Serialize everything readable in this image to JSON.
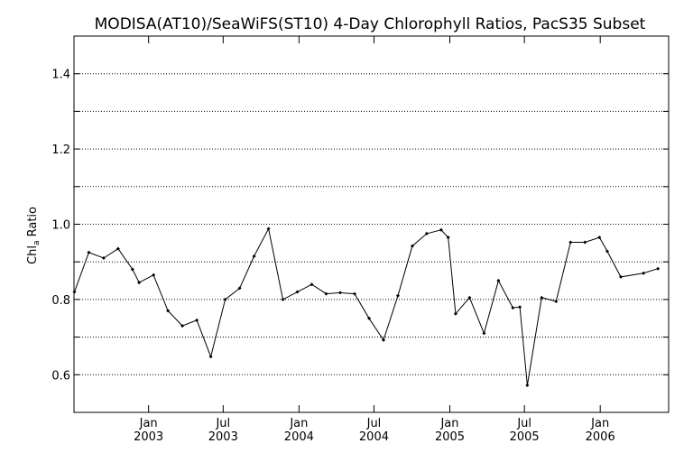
{
  "chart_data": {
    "type": "line",
    "title": "MODISA(AT10)/SeaWiFS(ST10) 4-Day Chlorophyll Ratios, PacS35 Subset",
    "ylabel": "Chl_a Ratio",
    "ylabel_main": "Chl",
    "ylabel_sub": "a",
    "ylabel_rest": " Ratio",
    "xlabel": "",
    "xlim": [
      "2002-07-04",
      "2006-06-16"
    ],
    "ylim": [
      0.5,
      1.5
    ],
    "yticks": [
      0.6,
      0.8,
      1.0,
      1.2,
      1.4
    ],
    "yticks_minor": [
      0.7,
      0.9,
      1.1,
      1.3
    ],
    "ytick_labels": [
      "0.6",
      "0.8",
      "1.0",
      "1.2",
      "1.4"
    ],
    "xticks": [
      {
        "date": "2003-01-01",
        "line1": "Jan",
        "line2": "2003"
      },
      {
        "date": "2003-07-01",
        "line1": "Jul",
        "line2": "2003"
      },
      {
        "date": "2004-01-01",
        "line1": "Jan",
        "line2": "2004"
      },
      {
        "date": "2004-07-01",
        "line1": "Jul",
        "line2": "2004"
      },
      {
        "date": "2005-01-01",
        "line1": "Jan",
        "line2": "2005"
      },
      {
        "date": "2005-07-01",
        "line1": "Jul",
        "line2": "2005"
      },
      {
        "date": "2006-01-01",
        "line1": "Jan",
        "line2": "2006"
      }
    ],
    "grid": "horizontal-dotted",
    "color": "#000000",
    "series": [
      {
        "x": [
          "2002-07-05",
          "2002-08-09",
          "2002-09-14",
          "2002-10-19",
          "2002-11-23",
          "2002-12-09",
          "2003-01-13",
          "2003-02-17",
          "2003-03-24",
          "2003-04-28",
          "2003-06-01",
          "2003-07-06",
          "2003-08-10",
          "2003-09-14",
          "2003-10-19",
          "2003-11-23",
          "2003-12-28",
          "2004-02-01",
          "2004-03-07",
          "2004-04-10",
          "2004-05-15",
          "2004-06-19",
          "2004-07-24",
          "2004-08-28",
          "2004-10-02",
          "2004-11-06",
          "2004-12-11",
          "2004-12-28",
          "2005-01-15",
          "2005-02-18",
          "2005-03-25",
          "2005-04-29",
          "2005-06-03",
          "2005-06-20",
          "2005-07-08",
          "2005-08-12",
          "2005-09-16",
          "2005-10-21",
          "2005-11-25",
          "2005-12-30",
          "2006-01-18",
          "2006-02-20",
          "2006-04-16",
          "2006-05-21"
        ],
        "y": [
          0.82,
          0.925,
          0.91,
          0.935,
          0.88,
          0.845,
          0.865,
          0.77,
          0.73,
          0.745,
          0.648,
          0.8,
          0.83,
          0.915,
          0.988,
          0.8,
          0.82,
          0.84,
          0.815,
          0.818,
          0.815,
          0.75,
          0.692,
          0.81,
          0.942,
          0.975,
          0.985,
          0.965,
          0.762,
          0.805,
          0.71,
          0.85,
          0.778,
          0.78,
          0.572,
          0.805,
          0.795,
          0.952,
          0.952,
          0.965,
          0.928,
          0.86,
          0.87,
          0.882
        ]
      }
    ]
  }
}
